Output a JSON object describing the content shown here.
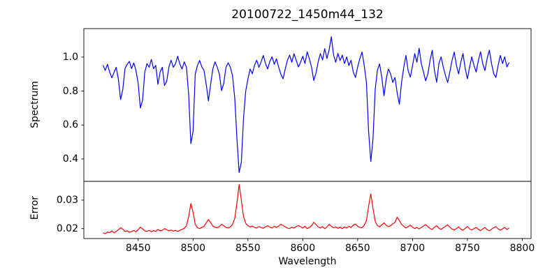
{
  "title": "20100722_1450m44_132",
  "colors": {
    "background": "#ffffff",
    "text": "#000000",
    "axes": "#000000",
    "spectrum_line": "#0000ff",
    "error_line": "#ff0000"
  },
  "chart_data": {
    "type": "line",
    "title": "20100722_1450m44_132",
    "xlabel": "Wavelength",
    "xlim": [
      8400.5,
      8808
    ],
    "x_ticks": [
      8450,
      8500,
      8550,
      8600,
      8650,
      8700,
      8750,
      8800
    ],
    "x_tick_labels": [
      "8450",
      "8500",
      "8550",
      "8600",
      "8650",
      "8700",
      "8750",
      "8800"
    ],
    "x_start": 8418,
    "x_step": 2,
    "x_end": 8788,
    "grid": false,
    "legend": "none",
    "notes": "Two vertically stacked shared-x subplots: top=Spectrum (blue) with Ca II triplet absorption dips near 8498, 8542, 8662; bottom=Error (red) with peaks at the same wavelengths.",
    "subplots": [
      {
        "name": "spectrum",
        "ylabel": "Spectrum",
        "color": "#0000ff",
        "ylim": [
          0.268,
          1.168
        ],
        "y_ticks": [
          0.4,
          0.6,
          0.8,
          1.0
        ],
        "y_tick_labels": [
          "0.4",
          "0.6",
          "0.8",
          "1.0"
        ],
        "values": [
          0.952,
          0.921,
          0.958,
          0.912,
          0.878,
          0.91,
          0.94,
          0.868,
          0.75,
          0.81,
          0.933,
          0.958,
          0.975,
          0.932,
          0.966,
          0.921,
          0.845,
          0.7,
          0.745,
          0.91,
          0.962,
          0.94,
          0.986,
          0.932,
          0.951,
          0.84,
          0.912,
          0.94,
          0.833,
          0.858,
          0.941,
          0.982,
          0.94,
          0.961,
          1.005,
          0.958,
          0.93,
          0.972,
          0.94,
          0.78,
          0.49,
          0.56,
          0.9,
          0.95,
          0.981,
          0.942,
          0.921,
          0.84,
          0.742,
          0.838,
          0.93,
          0.972,
          0.942,
          0.9,
          0.802,
          0.846,
          0.94,
          0.966,
          0.94,
          0.89,
          0.76,
          0.52,
          0.32,
          0.38,
          0.64,
          0.8,
          0.87,
          0.93,
          0.902,
          0.951,
          0.982,
          0.94,
          0.971,
          1.01,
          0.962,
          0.93,
          0.975,
          1.002,
          0.958,
          0.99,
          0.941,
          0.9,
          0.872,
          0.93,
          0.981,
          1.012,
          0.97,
          1.02,
          0.981,
          0.942,
          0.97,
          1.005,
          0.962,
          1.031,
          0.99,
          0.94,
          0.862,
          0.905,
          0.971,
          1.021,
          0.983,
          1.05,
          0.992,
          1.042,
          1.12,
          1.015,
          0.97,
          1.022,
          0.98,
          1.012,
          0.962,
          1.001,
          0.95,
          0.982,
          0.912,
          0.88,
          0.942,
          0.991,
          1.03,
          0.95,
          0.85,
          0.56,
          0.385,
          0.52,
          0.81,
          0.922,
          0.96,
          0.88,
          0.772,
          0.87,
          0.93,
          0.902,
          0.851,
          0.88,
          0.79,
          0.722,
          0.85,
          0.94,
          1.01,
          0.92,
          0.882,
          0.95,
          1.021,
          0.97,
          1.052,
          0.962,
          0.912,
          0.86,
          0.902,
          0.982,
          1.04,
          0.92,
          0.852,
          0.961,
          1.002,
          0.942,
          0.892,
          0.85,
          0.912,
          0.981,
          1.03,
          0.952,
          0.901,
          0.97,
          1.021,
          0.932,
          0.872,
          0.94,
          1.002,
          0.951,
          0.912,
          0.98,
          1.032,
          0.96,
          0.921,
          0.992,
          1.041,
          0.962,
          0.902,
          0.88,
          0.951,
          1.01,
          0.962,
          1.002,
          0.942,
          0.968
        ]
      },
      {
        "name": "error",
        "ylabel": "Error",
        "color": "#ff0000",
        "ylim": [
          0.0165,
          0.0366
        ],
        "y_ticks": [
          0.02,
          0.03
        ],
        "y_tick_labels": [
          "0.02",
          "0.03"
        ],
        "values": [
          0.0185,
          0.0182,
          0.0188,
          0.0186,
          0.0192,
          0.0185,
          0.019,
          0.0196,
          0.0203,
          0.0198,
          0.019,
          0.0192,
          0.0187,
          0.019,
          0.0193,
          0.0189,
          0.0196,
          0.0205,
          0.0199,
          0.0192,
          0.019,
          0.0194,
          0.0189,
          0.0193,
          0.019,
          0.0197,
          0.0192,
          0.0194,
          0.02,
          0.0196,
          0.0192,
          0.0195,
          0.0191,
          0.0194,
          0.019,
          0.0194,
          0.0197,
          0.0201,
          0.021,
          0.0242,
          0.0288,
          0.0258,
          0.0215,
          0.0203,
          0.02,
          0.0204,
          0.0208,
          0.022,
          0.0232,
          0.0221,
          0.0209,
          0.0205,
          0.0203,
          0.0207,
          0.0215,
          0.021,
          0.0204,
          0.0202,
          0.0206,
          0.0215,
          0.0235,
          0.029,
          0.0355,
          0.03,
          0.0242,
          0.0219,
          0.021,
          0.0206,
          0.0209,
          0.0204,
          0.0202,
          0.0207,
          0.0204,
          0.0201,
          0.0206,
          0.021,
          0.0205,
          0.0202,
          0.0208,
          0.0204,
          0.0209,
          0.0215,
          0.0211,
          0.0206,
          0.0202,
          0.02,
          0.0205,
          0.0202,
          0.0207,
          0.0211,
          0.0206,
          0.0202,
          0.0208,
          0.02,
          0.0204,
          0.021,
          0.0222,
          0.0214,
          0.0206,
          0.0202,
          0.0207,
          0.02,
          0.0205,
          0.0215,
          0.0208,
          0.0203,
          0.0206,
          0.0201,
          0.0205,
          0.02,
          0.0206,
          0.0202,
          0.0208,
          0.0204,
          0.0212,
          0.0216,
          0.0208,
          0.0204,
          0.0203,
          0.0212,
          0.0228,
          0.028,
          0.0322,
          0.027,
          0.0225,
          0.0211,
          0.0206,
          0.0213,
          0.022,
          0.0212,
          0.0207,
          0.021,
          0.0216,
          0.0222,
          0.024,
          0.0228,
          0.0215,
          0.0208,
          0.0202,
          0.0207,
          0.0212,
          0.0205,
          0.02,
          0.0204,
          0.0199,
          0.0204,
          0.0209,
          0.0214,
          0.0207,
          0.02,
          0.0197,
          0.0205,
          0.021,
          0.0201,
          0.0197,
          0.0203,
          0.0208,
          0.0213,
          0.0205,
          0.0198,
          0.0195,
          0.02,
          0.0206,
          0.0198,
          0.0194,
          0.0201,
          0.0207,
          0.0199,
          0.0195,
          0.02,
          0.0204,
          0.0197,
          0.0193,
          0.0199,
          0.0204,
          0.0196,
          0.0192,
          0.0198,
          0.0203,
          0.0207,
          0.0199,
          0.0194,
          0.0199,
          0.0204,
          0.0197,
          0.0202
        ]
      }
    ]
  }
}
